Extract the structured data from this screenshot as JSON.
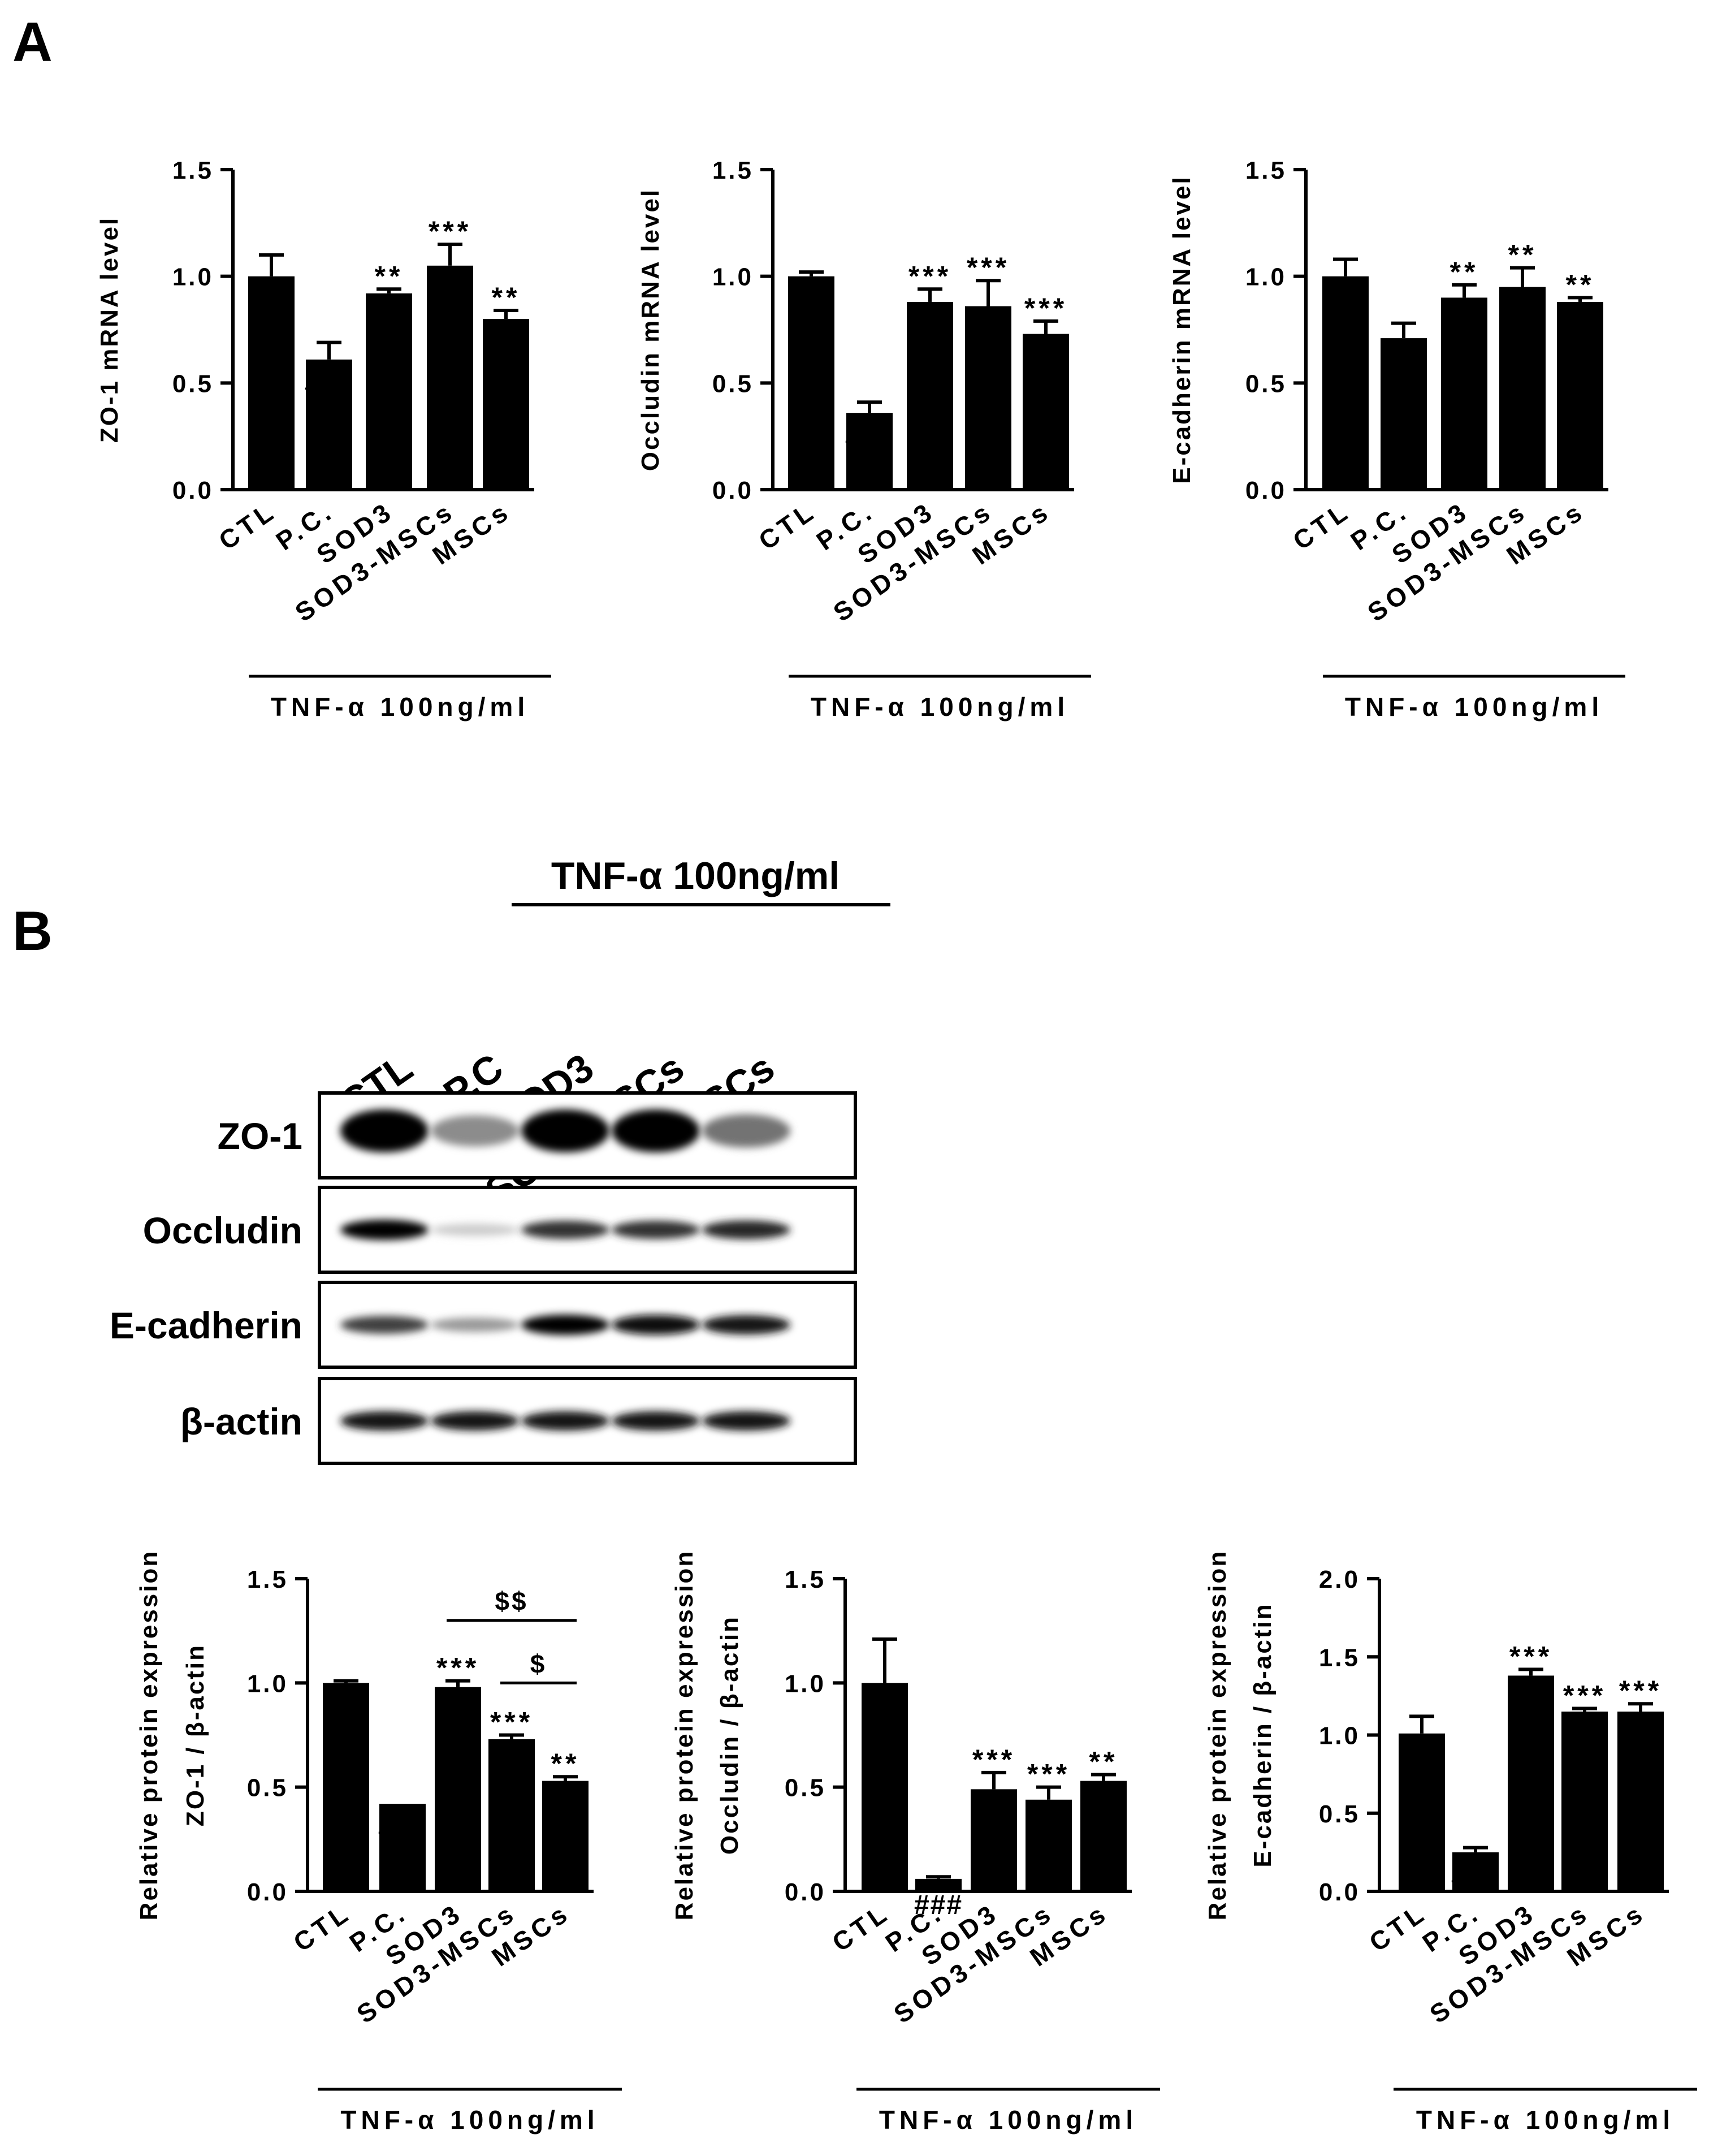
{
  "panel_labels": {
    "a": "A",
    "b": "B"
  },
  "western_blot": {
    "treatment_label": "TNF-α 100ng/ml",
    "lanes": [
      "CTL",
      "P.C",
      "SOD3",
      "SOD3-MSCs",
      "MSCs"
    ],
    "bands": [
      {
        "name": "ZO-1",
        "intensity": [
          1.0,
          0.45,
          1.0,
          1.0,
          0.55
        ]
      },
      {
        "name": "Occludin",
        "intensity": [
          1.0,
          0.2,
          0.8,
          0.8,
          0.85
        ]
      },
      {
        "name": "E-cadherin",
        "intensity": [
          0.75,
          0.4,
          1.0,
          0.95,
          0.9
        ]
      },
      {
        "name": "β-actin",
        "intensity": [
          0.9,
          0.9,
          0.9,
          0.9,
          0.9
        ]
      }
    ]
  },
  "chart_data": [
    {
      "type": "bar",
      "panel": "A",
      "categories": [
        "CTL",
        "P.C.",
        "SOD3",
        "SOD3-MSCs",
        "MSCs"
      ],
      "values": [
        1.0,
        0.61,
        0.92,
        1.05,
        0.8
      ],
      "errors": [
        0.1,
        0.08,
        0.02,
        0.1,
        0.04
      ],
      "annotations": [
        "",
        "###",
        "**",
        "***",
        "**"
      ],
      "ylabel": [
        "ZO-1 mRNA level"
      ],
      "ylim": [
        0,
        1.5
      ],
      "yticks": [
        "0.0",
        "0.5",
        "1.0",
        "1.5"
      ],
      "group_label": "TNF-α 100ng/ml",
      "comparisons": []
    },
    {
      "type": "bar",
      "panel": "A",
      "categories": [
        "CTL",
        "P.C.",
        "SOD3",
        "SOD3-MSCs",
        "MSCs"
      ],
      "values": [
        1.0,
        0.36,
        0.88,
        0.86,
        0.73
      ],
      "errors": [
        0.02,
        0.05,
        0.06,
        0.12,
        0.06
      ],
      "annotations": [
        "",
        "###",
        "***",
        "***",
        "***"
      ],
      "ylabel": [
        "Occludin mRNA level"
      ],
      "ylim": [
        0,
        1.5
      ],
      "yticks": [
        "0.0",
        "0.5",
        "1.0",
        "1.5"
      ],
      "group_label": "TNF-α 100ng/ml",
      "comparisons": []
    },
    {
      "type": "bar",
      "panel": "A",
      "categories": [
        "CTL",
        "P.C.",
        "SOD3",
        "SOD3-MSCs",
        "MSCs"
      ],
      "values": [
        1.0,
        0.71,
        0.9,
        0.95,
        0.88
      ],
      "errors": [
        0.08,
        0.07,
        0.06,
        0.09,
        0.02
      ],
      "annotations": [
        "",
        "##",
        "**",
        "**",
        "**"
      ],
      "ylabel": [
        "E-cadherin mRNA level"
      ],
      "ylim": [
        0,
        1.5
      ],
      "yticks": [
        "0.0",
        "0.5",
        "1.0",
        "1.5"
      ],
      "group_label": "TNF-α 100ng/ml",
      "comparisons": []
    },
    {
      "type": "bar",
      "panel": "B",
      "categories": [
        "CTL",
        "P.C.",
        "SOD3",
        "SOD3-MSCs",
        "MSCs"
      ],
      "values": [
        1.0,
        0.42,
        0.98,
        0.73,
        0.53
      ],
      "errors": [
        0.01,
        0.0,
        0.03,
        0.02,
        0.02
      ],
      "annotations": [
        "",
        "###",
        "***",
        "***",
        "**"
      ],
      "ylabel": [
        "Relative protein expression",
        "ZO-1 / β-actin"
      ],
      "ylim": [
        0,
        1.5
      ],
      "yticks": [
        "0.0",
        "0.5",
        "1.0",
        "1.5"
      ],
      "group_label": "TNF-α 100ng/ml",
      "comparisons": [
        {
          "from": 2,
          "to": 4,
          "label": "$$",
          "y": 1.3
        },
        {
          "from": 3,
          "to": 4,
          "label": "$",
          "y": 1.0
        }
      ]
    },
    {
      "type": "bar",
      "panel": "B",
      "categories": [
        "CTL",
        "P.C.",
        "SOD3",
        "SOD3-MSCs",
        "MSCs"
      ],
      "values": [
        1.0,
        0.06,
        0.49,
        0.44,
        0.53
      ],
      "errors": [
        0.21,
        0.01,
        0.08,
        0.06,
        0.03
      ],
      "annotations": [
        "",
        "###",
        "***",
        "***",
        "**"
      ],
      "ylabel": [
        "Relative protein expression",
        "Occludin / β-actin"
      ],
      "ylim": [
        0,
        1.5
      ],
      "yticks": [
        "0.0",
        "0.5",
        "1.0",
        "1.5"
      ],
      "group_label": "TNF-α 100ng/ml",
      "comparisons": []
    },
    {
      "type": "bar",
      "panel": "B",
      "categories": [
        "CTL",
        "P.C.",
        "SOD3",
        "SOD3-MSCs",
        "MSCs"
      ],
      "values": [
        1.01,
        0.25,
        1.38,
        1.15,
        1.15
      ],
      "errors": [
        0.11,
        0.03,
        0.04,
        0.02,
        0.05
      ],
      "annotations": [
        "",
        "###",
        "***",
        "***",
        "***"
      ],
      "ylabel": [
        "Relative protein expression",
        "E-cadherin / β-actin"
      ],
      "ylim": [
        0,
        2.0
      ],
      "yticks": [
        "0.0",
        "0.5",
        "1.0",
        "1.5",
        "2.0"
      ],
      "group_label": "TNF-α 100ng/ml",
      "comparisons": []
    }
  ]
}
